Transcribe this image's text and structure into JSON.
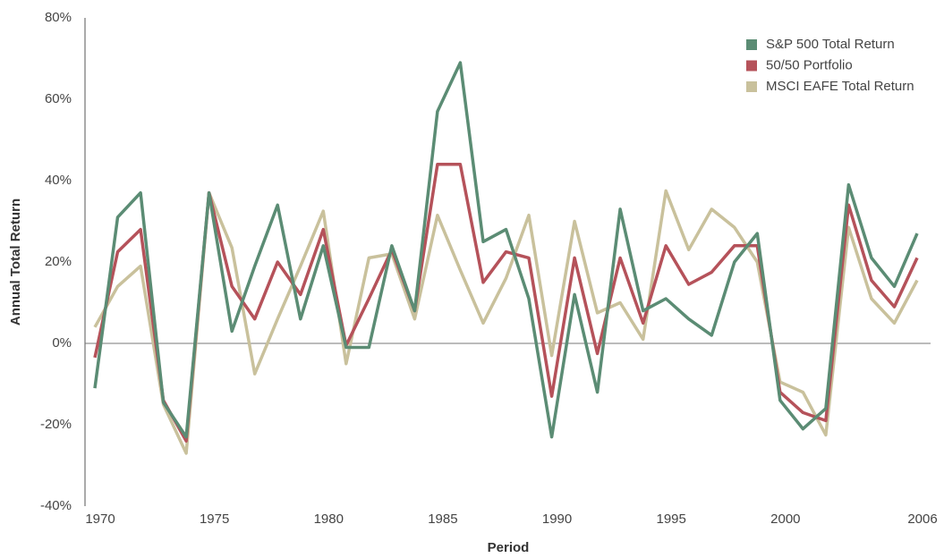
{
  "chart_data": {
    "type": "line",
    "x_label": "Period",
    "y_label": "Annual Total Return",
    "x": [
      1970,
      1971,
      1972,
      1973,
      1974,
      1975,
      1976,
      1977,
      1978,
      1979,
      1980,
      1981,
      1982,
      1983,
      1984,
      1985,
      1986,
      1987,
      1988,
      1989,
      1990,
      1991,
      1992,
      1993,
      1994,
      1995,
      1996,
      1997,
      1998,
      1999,
      2000,
      2001,
      2002,
      2003,
      2004,
      2005,
      2006
    ],
    "xlim": [
      1970,
      2006
    ],
    "xticks": [
      1970,
      1975,
      1980,
      1985,
      1990,
      1995,
      2000,
      2006
    ],
    "ylim": [
      -40,
      80
    ],
    "yticks": [
      {
        "value": -40,
        "label": "-40%"
      },
      {
        "value": -20,
        "label": "-20%"
      },
      {
        "value": 0,
        "label": "0%"
      },
      {
        "value": 20,
        "label": "20%"
      },
      {
        "value": 40,
        "label": "40%"
      },
      {
        "value": 60,
        "label": "60%"
      },
      {
        "value": 80,
        "label": "80%"
      }
    ],
    "legend": "top-right",
    "series": [
      {
        "name": "S&P 500 Total Return",
        "color": "#5b8c74",
        "values": [
          -11,
          31,
          37,
          -14.5,
          -23,
          37,
          3,
          19,
          34,
          6,
          24,
          -1,
          -1,
          24,
          8,
          57,
          69,
          25,
          28,
          11,
          -23,
          12,
          -12,
          33,
          8,
          11,
          6,
          2,
          20,
          27,
          -14,
          -21,
          -16,
          39,
          21,
          14,
          27
        ]
      },
      {
        "name": "50/50 Portfolio",
        "color": "#b5525a",
        "values": [
          -3.5,
          22.5,
          28,
          -14,
          -24,
          37,
          14,
          6,
          20,
          12,
          28,
          -0.5,
          11,
          23,
          8,
          44,
          44,
          15,
          22.5,
          21,
          -13,
          21,
          -2.5,
          21,
          5,
          24,
          14.5,
          17.5,
          24,
          24,
          -12,
          -17,
          -19,
          34,
          15.5,
          9,
          21
        ]
      },
      {
        "name": "MSCI EAFE Total Return",
        "color": "#c9c19c",
        "values": [
          4,
          14,
          19,
          -15,
          -27,
          37,
          23.5,
          -7.5,
          6,
          19,
          32.5,
          -5,
          21,
          22,
          6,
          31.5,
          18,
          5,
          16,
          31.5,
          -3,
          30,
          7.5,
          10,
          1,
          37.5,
          23,
          33,
          28.5,
          20,
          -9.5,
          -12,
          -22.5,
          28.5,
          11,
          5,
          15.5
        ]
      }
    ]
  }
}
